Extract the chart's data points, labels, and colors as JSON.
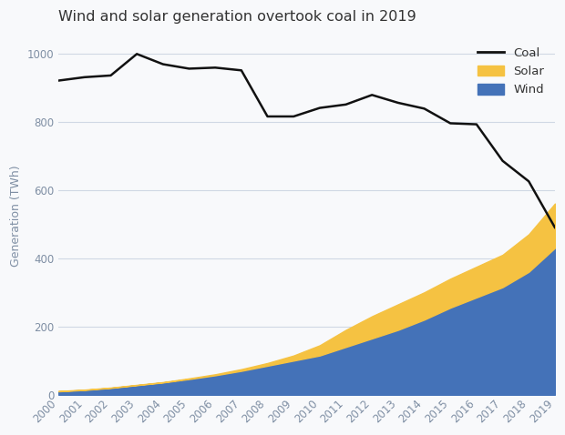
{
  "years": [
    2000,
    2001,
    2002,
    2003,
    2004,
    2005,
    2006,
    2007,
    2008,
    2009,
    2010,
    2011,
    2012,
    2013,
    2014,
    2015,
    2016,
    2017,
    2018,
    2019
  ],
  "coal": [
    920,
    930,
    935,
    998,
    968,
    955,
    958,
    950,
    815,
    815,
    840,
    850,
    878,
    855,
    838,
    795,
    792,
    685,
    625,
    490
  ],
  "wind": [
    10,
    14,
    20,
    28,
    36,
    46,
    57,
    70,
    85,
    100,
    115,
    140,
    165,
    190,
    220,
    255,
    285,
    315,
    360,
    430
  ],
  "solar": [
    1,
    1,
    1,
    1,
    1,
    2,
    3,
    5,
    8,
    15,
    30,
    50,
    65,
    75,
    80,
    85,
    90,
    95,
    110,
    130
  ],
  "title": "Wind and solar generation overtook coal in 2019",
  "ylabel": "Generation (TWh)",
  "ylim": [
    0,
    1050
  ],
  "yticks": [
    0,
    200,
    400,
    600,
    800,
    1000
  ],
  "coal_color": "#111111",
  "wind_color": "#4472b8",
  "solar_color": "#f5c242",
  "bg_color": "#f8f9fb",
  "grid_color": "#d0d8e4",
  "tick_color": "#7f8fa4",
  "title_color": "#333333",
  "title_fontsize": 11.5,
  "axis_fontsize": 9,
  "tick_fontsize": 8.5
}
